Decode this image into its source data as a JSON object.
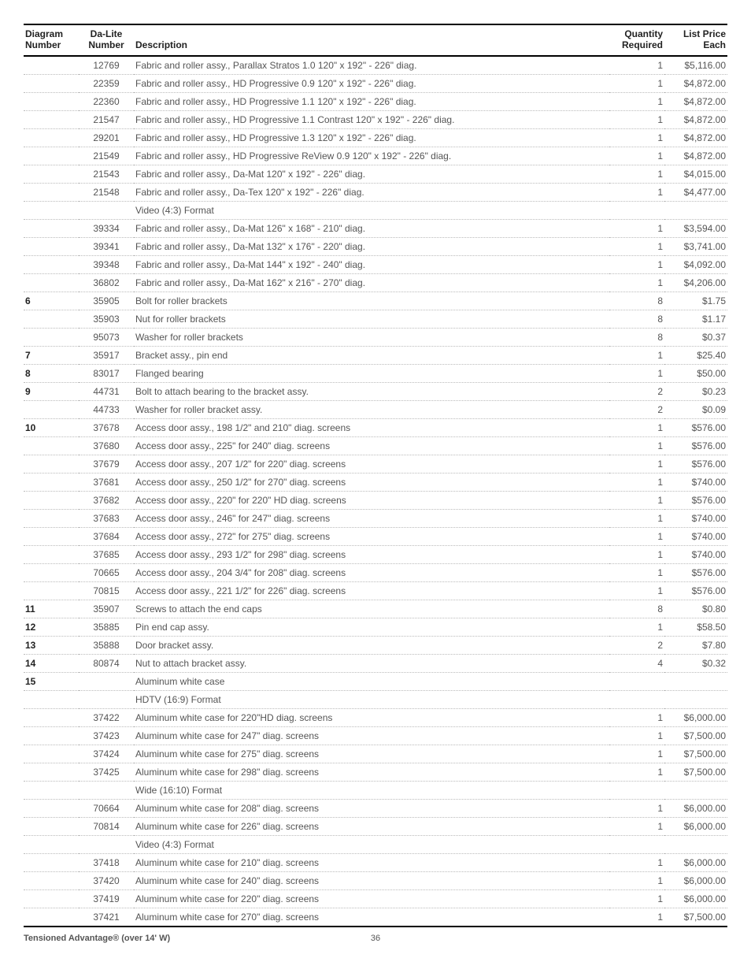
{
  "headers": {
    "diagram_l1": "Diagram",
    "diagram_l2": "Number",
    "dalite_l1": "Da-Lite",
    "dalite_l2": "Number",
    "description": "Description",
    "qty_l1": "Quantity",
    "qty_l2": "Required",
    "price_l1": "List Price",
    "price_l2": "Each"
  },
  "rows": [
    {
      "diag": "",
      "dalite": "12769",
      "desc": "Fabric and roller assy., Parallax Stratos 1.0 120\" x 192\" - 226\" diag.",
      "qty": "1",
      "price": "$5,116.00"
    },
    {
      "diag": "",
      "dalite": "22359",
      "desc": "Fabric and roller assy., HD Progressive 0.9 120\" x 192\" - 226\" diag.",
      "qty": "1",
      "price": "$4,872.00"
    },
    {
      "diag": "",
      "dalite": "22360",
      "desc": "Fabric and roller assy., HD Progressive 1.1 120\" x 192\" - 226\" diag.",
      "qty": "1",
      "price": "$4,872.00"
    },
    {
      "diag": "",
      "dalite": "21547",
      "desc": "Fabric and roller assy., HD Progressive 1.1 Contrast  120\" x 192\" - 226\" diag.",
      "qty": "1",
      "price": "$4,872.00"
    },
    {
      "diag": "",
      "dalite": "29201",
      "desc": "Fabric and roller assy., HD Progressive 1.3 120\" x 192\" - 226\" diag.",
      "qty": "1",
      "price": "$4,872.00"
    },
    {
      "diag": "",
      "dalite": "21549",
      "desc": "Fabric and roller assy., HD Progressive ReView 0.9 120\" x 192\" - 226\" diag.",
      "qty": "1",
      "price": "$4,872.00"
    },
    {
      "diag": "",
      "dalite": "21543",
      "desc": "Fabric and roller assy., Da-Mat 120\" x 192\" - 226\" diag.",
      "qty": "1",
      "price": "$4,015.00"
    },
    {
      "diag": "",
      "dalite": "21548",
      "desc": "Fabric and roller assy., Da-Tex 120\" x 192\" - 226\" diag.",
      "qty": "1",
      "price": "$4,477.00"
    },
    {
      "diag": "",
      "dalite": "",
      "desc": "Video (4:3) Format",
      "qty": "",
      "price": ""
    },
    {
      "diag": "",
      "dalite": "39334",
      "desc": "Fabric and roller assy., Da-Mat 126\" x 168\" - 210\" diag.",
      "qty": "1",
      "price": "$3,594.00"
    },
    {
      "diag": "",
      "dalite": "39341",
      "desc": "Fabric and roller assy., Da-Mat 132\" x 176\" - 220\" diag.",
      "qty": "1",
      "price": "$3,741.00"
    },
    {
      "diag": "",
      "dalite": "39348",
      "desc": "Fabric and roller assy., Da-Mat 144\" x 192\" - 240\" diag.",
      "qty": "1",
      "price": "$4,092.00"
    },
    {
      "diag": "",
      "dalite": "36802",
      "desc": "Fabric and roller assy., Da-Mat 162\" x 216\" - 270\" diag.",
      "qty": "1",
      "price": "$4,206.00"
    },
    {
      "diag": "6",
      "dalite": "35905",
      "desc": "Bolt for roller brackets",
      "qty": "8",
      "price": "$1.75"
    },
    {
      "diag": "",
      "dalite": "35903",
      "desc": "Nut for roller brackets",
      "qty": "8",
      "price": "$1.17"
    },
    {
      "diag": "",
      "dalite": "95073",
      "desc": "Washer for roller brackets",
      "qty": "8",
      "price": "$0.37"
    },
    {
      "diag": "7",
      "dalite": "35917",
      "desc": "Bracket assy., pin end",
      "qty": "1",
      "price": "$25.40"
    },
    {
      "diag": "8",
      "dalite": "83017",
      "desc": "Flanged bearing",
      "qty": "1",
      "price": "$50.00"
    },
    {
      "diag": "9",
      "dalite": "44731",
      "desc": "Bolt to attach bearing to the bracket assy.",
      "qty": "2",
      "price": "$0.23"
    },
    {
      "diag": "",
      "dalite": "44733",
      "desc": "Washer for roller bracket assy.",
      "qty": "2",
      "price": "$0.09"
    },
    {
      "diag": "10",
      "dalite": "37678",
      "desc": "Access door assy., 198 1/2\" and 210\" diag. screens",
      "qty": "1",
      "price": "$576.00"
    },
    {
      "diag": "",
      "dalite": "37680",
      "desc": "Access door assy., 225\" for 240\" diag. screens",
      "qty": "1",
      "price": "$576.00"
    },
    {
      "diag": "",
      "dalite": "37679",
      "desc": "Access door assy., 207 1/2\" for 220\" diag. screens",
      "qty": "1",
      "price": "$576.00"
    },
    {
      "diag": "",
      "dalite": "37681",
      "desc": "Access door assy., 250 1/2\" for 270\" diag. screens",
      "qty": "1",
      "price": "$740.00"
    },
    {
      "diag": "",
      "dalite": "37682",
      "desc": "Access door assy., 220\" for 220\" HD diag. screens",
      "qty": "1",
      "price": "$576.00"
    },
    {
      "diag": "",
      "dalite": "37683",
      "desc": "Access door assy., 246\" for 247\" diag. screens",
      "qty": "1",
      "price": "$740.00"
    },
    {
      "diag": "",
      "dalite": "37684",
      "desc": "Access door assy., 272\" for 275\" diag. screens",
      "qty": "1",
      "price": "$740.00"
    },
    {
      "diag": "",
      "dalite": "37685",
      "desc": "Access door assy., 293 1/2\" for 298\" diag. screens",
      "qty": "1",
      "price": "$740.00"
    },
    {
      "diag": "",
      "dalite": "70665",
      "desc": "Access door assy., 204 3/4\" for 208\" diag. screens",
      "qty": "1",
      "price": "$576.00"
    },
    {
      "diag": "",
      "dalite": "70815",
      "desc": "Access door assy., 221 1/2\" for 226\" diag. screens",
      "qty": "1",
      "price": "$576.00"
    },
    {
      "diag": "11",
      "dalite": "35907",
      "desc": "Screws to attach the end caps",
      "qty": "8",
      "price": "$0.80"
    },
    {
      "diag": "12",
      "dalite": "35885",
      "desc": "Pin end cap assy.",
      "qty": "1",
      "price": "$58.50"
    },
    {
      "diag": "13",
      "dalite": "35888",
      "desc": "Door bracket assy.",
      "qty": "2",
      "price": "$7.80"
    },
    {
      "diag": "14",
      "dalite": "80874",
      "desc": "Nut to attach bracket assy.",
      "qty": "4",
      "price": "$0.32"
    },
    {
      "diag": "15",
      "dalite": "",
      "desc": "Aluminum white case",
      "qty": "",
      "price": ""
    },
    {
      "diag": "",
      "dalite": "",
      "desc": "HDTV (16:9) Format",
      "qty": "",
      "price": ""
    },
    {
      "diag": "",
      "dalite": "37422",
      "desc": "Aluminum white case for 220\"HD diag. screens",
      "qty": "1",
      "price": "$6,000.00"
    },
    {
      "diag": "",
      "dalite": "37423",
      "desc": "Aluminum white case for 247\" diag. screens",
      "qty": "1",
      "price": "$7,500.00"
    },
    {
      "diag": "",
      "dalite": "37424",
      "desc": "Aluminum white case for 275\" diag. screens",
      "qty": "1",
      "price": "$7,500.00"
    },
    {
      "diag": "",
      "dalite": "37425",
      "desc": "Aluminum white case for 298\" diag. screens",
      "qty": "1",
      "price": "$7,500.00"
    },
    {
      "diag": "",
      "dalite": "",
      "desc": "Wide (16:10) Format",
      "qty": "",
      "price": ""
    },
    {
      "diag": "",
      "dalite": "70664",
      "desc": "Aluminum white case for 208\" diag. screens",
      "qty": "1",
      "price": "$6,000.00"
    },
    {
      "diag": "",
      "dalite": "70814",
      "desc": "Aluminum white case for 226\" diag. screens",
      "qty": "1",
      "price": "$6,000.00"
    },
    {
      "diag": "",
      "dalite": "",
      "desc": "Video (4:3) Format",
      "qty": "",
      "price": ""
    },
    {
      "diag": "",
      "dalite": "37418",
      "desc": "Aluminum white case for 210\" diag. screens",
      "qty": "1",
      "price": "$6,000.00"
    },
    {
      "diag": "",
      "dalite": "37420",
      "desc": "Aluminum white case for 240\" diag. screens",
      "qty": "1",
      "price": "$6,000.00"
    },
    {
      "diag": "",
      "dalite": "37419",
      "desc": "Aluminum white case for 220\" diag. screens",
      "qty": "1",
      "price": "$6,000.00"
    },
    {
      "diag": "",
      "dalite": "37421",
      "desc": "Aluminum white case for 270\" diag. screens",
      "qty": "1",
      "price": "$7,500.00"
    }
  ],
  "footer": {
    "title": "Tensioned Advantage® (over 14' W)",
    "page": "36"
  }
}
